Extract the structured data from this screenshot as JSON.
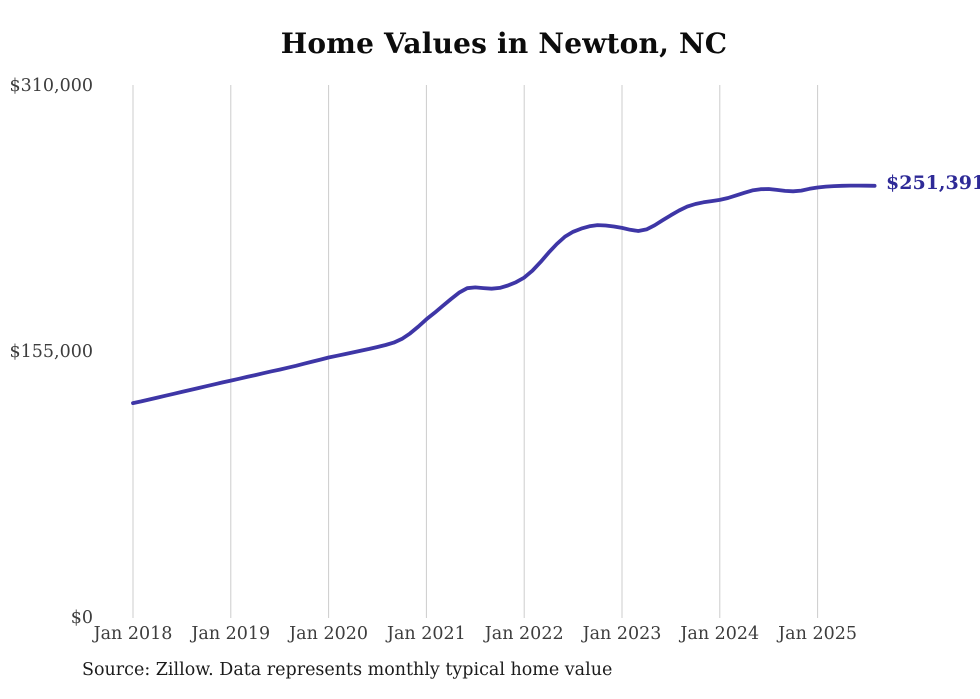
{
  "title": "Home Values in Newton, NC",
  "end_label": "$251,391",
  "source_note": "Source: Zillow. Data represents monthly typical home value",
  "colors": {
    "line": "#3e36a6",
    "end_label": "#2e2a97",
    "gridline": "#cccccc",
    "tick_text": "#3d3d3d",
    "title_text": "#0c0c0c",
    "background": "#ffffff"
  },
  "chart_data": {
    "type": "line",
    "title": "Home Values in Newton, NC",
    "xlabel": "",
    "ylabel": "",
    "ylim": [
      0,
      310000
    ],
    "y_ticks": [
      0,
      155000,
      310000
    ],
    "y_tick_labels": [
      "$0",
      "$155,000",
      "$310,000"
    ],
    "x_start_month": "2018-01",
    "x_end_month": "2025-08",
    "x_tick_labels": [
      "Jan 2018",
      "Jan 2019",
      "Jan 2020",
      "Jan 2021",
      "Jan 2022",
      "Jan 2023",
      "Jan 2024",
      "Jan 2025"
    ],
    "x_tick_month_indices": [
      0,
      12,
      24,
      36,
      48,
      60,
      72,
      84
    ],
    "grid": "vertical-only",
    "legend": "none",
    "end_value": 251391,
    "series": [
      {
        "name": "Monthly typical home value",
        "monthly_values": [
          125000,
          126000,
          127100,
          128200,
          129300,
          130400,
          131500,
          132600,
          133700,
          134800,
          135900,
          137000,
          138100,
          139100,
          140200,
          141300,
          142400,
          143500,
          144500,
          145600,
          146700,
          147900,
          149100,
          150300,
          151500,
          152500,
          153500,
          154500,
          155500,
          156500,
          157600,
          158800,
          160200,
          162300,
          165500,
          169500,
          173700,
          177500,
          181500,
          185500,
          189200,
          191800,
          192300,
          191900,
          191500,
          192000,
          193400,
          195300,
          198000,
          202000,
          207000,
          212500,
          217500,
          221800,
          224600,
          226500,
          227800,
          228500,
          228300,
          227700,
          226900,
          225800,
          225100,
          226000,
          228400,
          231400,
          234300,
          237000,
          239300,
          240800,
          241800,
          242500,
          243200,
          244300,
          245800,
          247300,
          248700,
          249400,
          249500,
          249000,
          248400,
          248200,
          248600,
          249600,
          250400,
          250900,
          251200,
          251400,
          251500,
          251500,
          251450,
          251391
        ]
      }
    ]
  }
}
